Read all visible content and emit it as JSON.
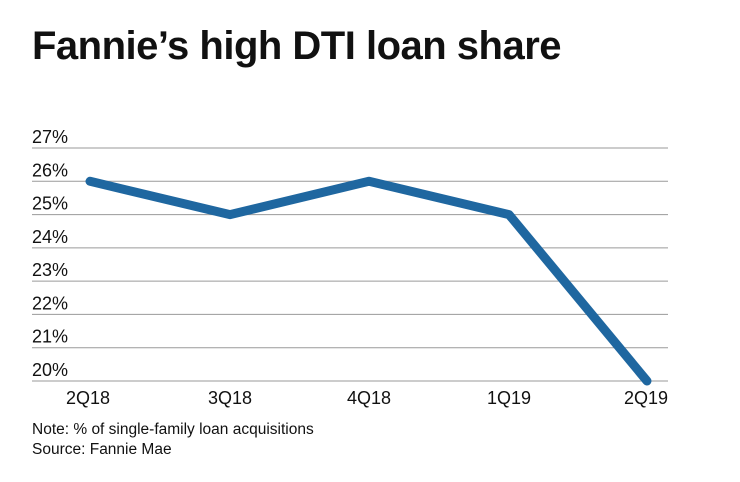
{
  "chart_data": {
    "type": "line",
    "title": "Fannie’s high DTI loan share",
    "categories": [
      "2Q18",
      "3Q18",
      "4Q18",
      "1Q19",
      "2Q19"
    ],
    "series": [
      {
        "values": [
          26,
          25,
          26,
          25,
          20
        ]
      }
    ],
    "ylim": [
      20,
      27
    ],
    "yticks": [
      "20%",
      "21%",
      "22%",
      "23%",
      "24%",
      "25%",
      "26%",
      "27%"
    ],
    "grid": true,
    "line_color": "#1f67a0",
    "notes": [
      "Note: % of single-family loan acquisitions",
      "Source: Fannie Mae"
    ]
  }
}
